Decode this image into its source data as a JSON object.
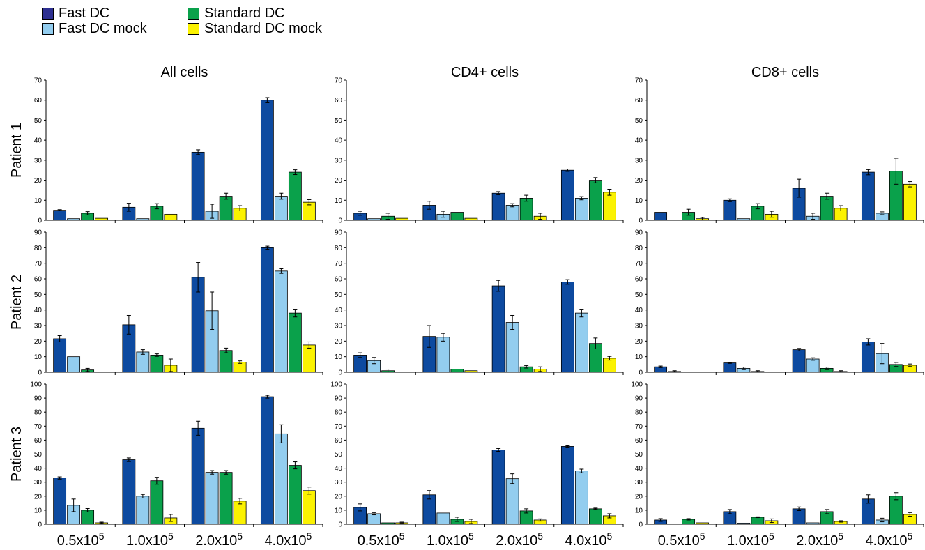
{
  "legend": [
    {
      "label": "Fast DC",
      "color": "#2d2f91"
    },
    {
      "label": "Fast DC mock",
      "color": "#93cdef"
    },
    {
      "label": "Standard DC",
      "color": "#0aa14b"
    },
    {
      "label": "Standard DC mock",
      "color": "#fbf201"
    }
  ],
  "columns": [
    "All cells",
    "CD4+ cells",
    "CD8+ cells"
  ],
  "rows": [
    "Patient 1",
    "Patient 2",
    "Patient 3"
  ],
  "categories": [
    {
      "base": "0.5x10",
      "exp": "5"
    },
    {
      "base": "1.0x10",
      "exp": "5"
    },
    {
      "base": "2.0x10",
      "exp": "5"
    },
    {
      "base": "4.0x10",
      "exp": "5"
    }
  ],
  "bar_colors": [
    "#0d4aa0",
    "#93cdef",
    "#0aa14b",
    "#fbf201"
  ],
  "chart_data": [
    {
      "type": "bar",
      "title": "All cells",
      "ylabel": "Patient 1",
      "ylim": [
        0,
        70
      ],
      "yticks": [
        0,
        10,
        20,
        30,
        40,
        50,
        60,
        70
      ],
      "categories": [
        "0.5x10^5",
        "1.0x10^5",
        "2.0x10^5",
        "4.0x10^5"
      ],
      "series": [
        {
          "name": "Fast DC",
          "values": [
            5,
            6.5,
            34,
            60
          ],
          "errors": [
            0.3,
            2,
            1.2,
            1.3
          ]
        },
        {
          "name": "Fast DC mock",
          "values": [
            0.8,
            0.8,
            4.5,
            12
          ],
          "errors": [
            0,
            0,
            3.5,
            1.5
          ]
        },
        {
          "name": "Standard DC",
          "values": [
            3.5,
            7,
            12,
            24
          ],
          "errors": [
            0.8,
            1.3,
            1.5,
            1.2
          ]
        },
        {
          "name": "Standard DC mock",
          "values": [
            1,
            3,
            6,
            9
          ],
          "errors": [
            0,
            0,
            1.3,
            1.3
          ]
        }
      ]
    },
    {
      "type": "bar",
      "title": "CD4+ cells",
      "ylabel": "Patient 1",
      "ylim": [
        0,
        70
      ],
      "yticks": [
        0,
        10,
        20,
        30,
        40,
        50,
        60,
        70
      ],
      "categories": [
        "0.5x10^5",
        "1.0x10^5",
        "2.0x10^5",
        "4.0x10^5"
      ],
      "series": [
        {
          "name": "Fast DC",
          "values": [
            3.5,
            7.5,
            13.5,
            25
          ],
          "errors": [
            1,
            2,
            0.8,
            0.6
          ]
        },
        {
          "name": "Fast DC mock",
          "values": [
            0.8,
            3,
            7.5,
            11
          ],
          "errors": [
            0,
            1.5,
            0.8,
            0.8
          ]
        },
        {
          "name": "Standard DC",
          "values": [
            2,
            4,
            11,
            20
          ],
          "errors": [
            1.5,
            0,
            1.5,
            1.3
          ]
        },
        {
          "name": "Standard DC mock",
          "values": [
            1,
            1,
            2,
            14
          ],
          "errors": [
            0,
            0,
            1.5,
            1.5
          ]
        }
      ]
    },
    {
      "type": "bar",
      "title": "CD8+ cells",
      "ylabel": "Patient 1",
      "ylim": [
        0,
        70
      ],
      "yticks": [
        0,
        10,
        20,
        30,
        40,
        50,
        60,
        70
      ],
      "categories": [
        "0.5x10^5",
        "1.0x10^5",
        "2.0x10^5",
        "4.0x10^5"
      ],
      "series": [
        {
          "name": "Fast DC",
          "values": [
            4,
            10,
            16,
            24
          ],
          "errors": [
            0,
            0.7,
            4.5,
            1.3
          ]
        },
        {
          "name": "Fast DC mock",
          "values": [
            0,
            0.8,
            2,
            3.5
          ],
          "errors": [
            0,
            0,
            1.5,
            0.7
          ]
        },
        {
          "name": "Standard DC",
          "values": [
            4,
            7,
            12,
            24.5
          ],
          "errors": [
            1.5,
            1.3,
            1.5,
            6.5
          ]
        },
        {
          "name": "Standard DC mock",
          "values": [
            0.8,
            3,
            6,
            18
          ],
          "errors": [
            0.6,
            1.5,
            1.3,
            1.3
          ]
        }
      ]
    },
    {
      "type": "bar",
      "title": "All cells",
      "ylabel": "Patient 2",
      "ylim": [
        0,
        90
      ],
      "yticks": [
        0,
        10,
        20,
        30,
        40,
        50,
        60,
        70,
        80,
        90
      ],
      "categories": [
        "0.5x10^5",
        "1.0x10^5",
        "2.0x10^5",
        "4.0x10^5"
      ],
      "series": [
        {
          "name": "Fast DC",
          "values": [
            21.5,
            30.5,
            61,
            80
          ],
          "errors": [
            2,
            6,
            9.5,
            1
          ]
        },
        {
          "name": "Fast DC mock",
          "values": [
            10,
            13,
            39.5,
            65
          ],
          "errors": [
            0,
            1.5,
            12,
            1.5
          ]
        },
        {
          "name": "Standard DC",
          "values": [
            1.5,
            11,
            14,
            38
          ],
          "errors": [
            1,
            0.8,
            1.5,
            2.5
          ]
        },
        {
          "name": "Standard DC mock",
          "values": [
            0,
            4.5,
            6.5,
            17.5
          ],
          "errors": [
            0,
            4,
            0.8,
            2
          ]
        }
      ]
    },
    {
      "type": "bar",
      "title": "CD4+ cells",
      "ylabel": "Patient 2",
      "ylim": [
        0,
        90
      ],
      "yticks": [
        0,
        10,
        20,
        30,
        40,
        50,
        60,
        70,
        80,
        90
      ],
      "categories": [
        "0.5x10^5",
        "1.0x10^5",
        "2.0x10^5",
        "4.0x10^5"
      ],
      "series": [
        {
          "name": "Fast DC",
          "values": [
            11,
            23,
            55.5,
            58
          ],
          "errors": [
            1.5,
            7,
            3.5,
            1.5
          ]
        },
        {
          "name": "Fast DC mock",
          "values": [
            7.5,
            22.5,
            32,
            38
          ],
          "errors": [
            2,
            2.5,
            4.5,
            2.5
          ]
        },
        {
          "name": "Standard DC",
          "values": [
            1,
            2,
            3.5,
            18.5
          ],
          "errors": [
            1,
            0,
            0.8,
            3.5
          ]
        },
        {
          "name": "Standard DC mock",
          "values": [
            0,
            1,
            2,
            9
          ],
          "errors": [
            0,
            0,
            1.5,
            1.2
          ]
        }
      ]
    },
    {
      "type": "bar",
      "title": "CD8+ cells",
      "ylabel": "Patient 2",
      "ylim": [
        0,
        90
      ],
      "yticks": [
        0,
        10,
        20,
        30,
        40,
        50,
        60,
        70,
        80,
        90
      ],
      "categories": [
        "0.5x10^5",
        "1.0x10^5",
        "2.0x10^5",
        "4.0x10^5"
      ],
      "series": [
        {
          "name": "Fast DC",
          "values": [
            3.5,
            6,
            14.5,
            19.5
          ],
          "errors": [
            0.5,
            0.3,
            0.8,
            2
          ]
        },
        {
          "name": "Fast DC mock",
          "values": [
            0.5,
            2.5,
            8.5,
            12
          ],
          "errors": [
            0.5,
            0.8,
            0.8,
            6.5
          ]
        },
        {
          "name": "Standard DC",
          "values": [
            0,
            0.5,
            2.5,
            5
          ],
          "errors": [
            0,
            0.5,
            0.8,
            1.3
          ]
        },
        {
          "name": "Standard DC mock",
          "values": [
            0,
            0,
            0.5,
            4.5
          ],
          "errors": [
            0,
            0,
            0.5,
            0.8
          ]
        }
      ]
    },
    {
      "type": "bar",
      "title": "All cells",
      "ylabel": "Patient 3",
      "ylim": [
        0,
        100
      ],
      "yticks": [
        0,
        10,
        20,
        30,
        40,
        50,
        60,
        70,
        80,
        90,
        100
      ],
      "categories": [
        "0.5x10^5",
        "1.0x10^5",
        "2.0x10^5",
        "4.0x10^5"
      ],
      "series": [
        {
          "name": "Fast DC",
          "values": [
            33,
            46,
            68.5,
            91
          ],
          "errors": [
            0.8,
            1.3,
            5,
            1
          ]
        },
        {
          "name": "Fast DC mock",
          "values": [
            13.5,
            20,
            37,
            64.5
          ],
          "errors": [
            4.5,
            1.3,
            1.3,
            6.5
          ]
        },
        {
          "name": "Standard DC",
          "values": [
            10,
            31,
            37,
            42
          ],
          "errors": [
            1.2,
            2.5,
            1.3,
            2.5
          ]
        },
        {
          "name": "Standard DC mock",
          "values": [
            1,
            4.5,
            16.5,
            24
          ],
          "errors": [
            0.5,
            2.5,
            2,
            2.5
          ]
        }
      ]
    },
    {
      "type": "bar",
      "title": "CD4+ cells",
      "ylabel": "Patient 3",
      "ylim": [
        0,
        100
      ],
      "yticks": [
        0,
        10,
        20,
        30,
        40,
        50,
        60,
        70,
        80,
        90,
        100
      ],
      "categories": [
        "0.5x10^5",
        "1.0x10^5",
        "2.0x10^5",
        "4.0x10^5"
      ],
      "series": [
        {
          "name": "Fast DC",
          "values": [
            12,
            21,
            53,
            55.5
          ],
          "errors": [
            2.5,
            3,
            1,
            0.5
          ]
        },
        {
          "name": "Fast DC mock",
          "values": [
            7.5,
            8,
            32.5,
            38
          ],
          "errors": [
            0.8,
            0,
            3.5,
            1.3
          ]
        },
        {
          "name": "Standard DC",
          "values": [
            1,
            3.5,
            9.5,
            11
          ],
          "errors": [
            0,
            1.5,
            1.5,
            0.5
          ]
        },
        {
          "name": "Standard DC mock",
          "values": [
            1,
            2,
            3,
            6
          ],
          "errors": [
            0.5,
            1.5,
            0.8,
            1.5
          ]
        }
      ]
    },
    {
      "type": "bar",
      "title": "CD8+ cells",
      "ylabel": "Patient 3",
      "ylim": [
        0,
        100
      ],
      "yticks": [
        0,
        10,
        20,
        30,
        40,
        50,
        60,
        70,
        80,
        90,
        100
      ],
      "categories": [
        "0.5x10^5",
        "1.0x10^5",
        "2.0x10^5",
        "4.0x10^5"
      ],
      "series": [
        {
          "name": "Fast DC",
          "values": [
            3,
            9,
            11,
            18
          ],
          "errors": [
            1,
            1.5,
            1.3,
            3
          ]
        },
        {
          "name": "Fast DC mock",
          "values": [
            0,
            0.8,
            1,
            3
          ],
          "errors": [
            0,
            0,
            0,
            1.3
          ]
        },
        {
          "name": "Standard DC",
          "values": [
            3.5,
            5,
            9,
            20
          ],
          "errors": [
            0.5,
            0.3,
            1.5,
            2.5
          ]
        },
        {
          "name": "Standard DC mock",
          "values": [
            1,
            2.5,
            2,
            7
          ],
          "errors": [
            0,
            1.3,
            0.5,
            1.3
          ]
        }
      ]
    }
  ]
}
